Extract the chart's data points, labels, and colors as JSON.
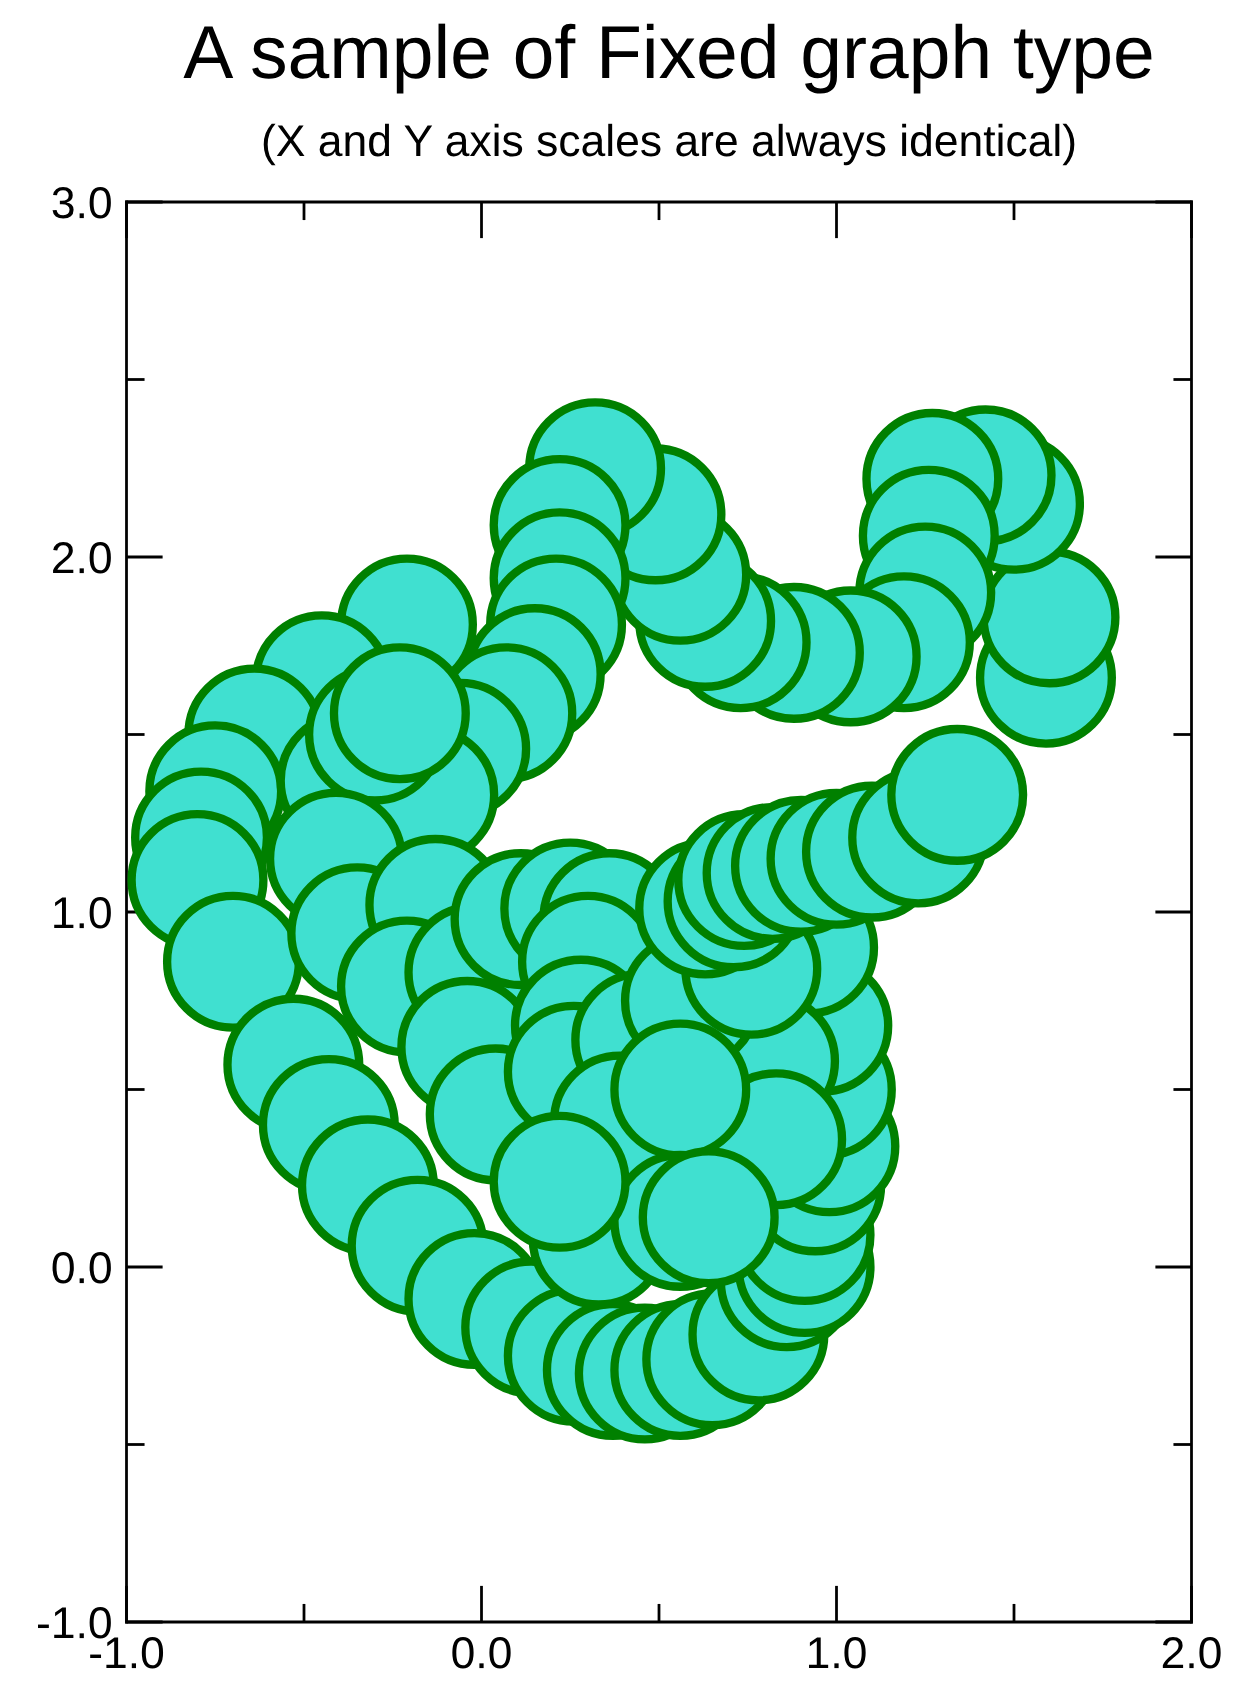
{
  "chart_data": {
    "type": "scatter",
    "title": "A sample of Fixed graph type",
    "subtitle": "(X and Y axis scales are always identical)",
    "x": [
      1.59,
      1.6,
      1.5,
      1.42,
      1.27,
      1.26,
      1.25,
      1.19,
      1.04,
      0.88,
      0.73,
      0.63,
      0.56,
      0.49,
      0.32,
      0.22,
      0.22,
      0.21,
      0.15,
      0.07,
      -0.06,
      -0.21,
      -0.45,
      -0.64,
      -0.75,
      -0.79,
      -0.8,
      -0.38,
      -0.15,
      -0.3,
      -0.23,
      -0.41,
      -0.7,
      -0.53,
      -0.43,
      -0.32,
      -0.18,
      -0.02,
      0.14,
      0.26,
      0.37,
      0.46,
      0.56,
      0.65,
      0.78,
      0.86,
      0.91,
      0.91,
      0.94,
      0.98,
      0.97,
      0.96,
      0.92,
      0.81,
      0.83,
      -0.35,
      -0.13,
      -0.21,
      -0.02,
      -0.04,
      0.04,
      0.11,
      0.25,
      0.36,
      0.3,
      0.28,
      0.26,
      0.45,
      0.59,
      0.39,
      0.56,
      0.33,
      0.56,
      0.64,
      0.22,
      0.76,
      0.63,
      0.71,
      0.74,
      0.82,
      0.9,
      1.0,
      1.1,
      1.23,
      1.34
    ],
    "values": [
      1.66,
      1.83,
      2.15,
      2.23,
      2.22,
      2.06,
      1.9,
      1.76,
      1.72,
      1.73,
      1.76,
      1.82,
      1.95,
      2.12,
      2.25,
      2.09,
      1.94,
      1.81,
      1.67,
      1.56,
      1.46,
      1.81,
      1.65,
      1.5,
      1.34,
      1.21,
      1.09,
      1.37,
      1.33,
      1.5,
      1.56,
      1.15,
      0.86,
      0.57,
      0.4,
      0.23,
      0.06,
      -0.09,
      -0.17,
      -0.25,
      -0.29,
      -0.3,
      -0.29,
      -0.26,
      -0.19,
      -0.04,
      0.0,
      0.09,
      0.23,
      0.34,
      0.5,
      0.68,
      0.9,
      0.58,
      0.36,
      0.94,
      1.02,
      0.79,
      0.83,
      0.62,
      0.43,
      0.98,
      1.01,
      0.98,
      0.86,
      0.68,
      0.55,
      0.64,
      0.75,
      0.41,
      0.5,
      0.08,
      0.13,
      0.14,
      0.24,
      0.84,
      1.01,
      1.03,
      1.09,
      1.11,
      1.13,
      1.15,
      1.17,
      1.21,
      1.33
    ],
    "color": "#40e0d0",
    "marker": "circle",
    "xlim": [
      -1,
      2
    ],
    "ylim": [
      -1,
      3
    ],
    "xticks": [
      {
        "value": -1,
        "label": "-1.0"
      },
      {
        "value": -0.5,
        "label": null
      },
      {
        "value": 0,
        "label": "0.0"
      },
      {
        "value": 0.5,
        "label": null
      },
      {
        "value": 1,
        "label": "1.0"
      },
      {
        "value": 1.5,
        "label": null
      },
      {
        "value": 2,
        "label": "2.0"
      }
    ],
    "yticks": [
      {
        "value": -1,
        "label": "-1.0"
      },
      {
        "value": -0.5,
        "label": null
      },
      {
        "value": 0,
        "label": "0.0"
      },
      {
        "value": 0.5,
        "label": null
      },
      {
        "value": 1,
        "label": "1.0"
      },
      {
        "value": 1.5,
        "label": null
      },
      {
        "value": 2,
        "label": "2.0"
      },
      {
        "value": 2.5,
        "label": null
      },
      {
        "value": 3,
        "label": "3.0"
      }
    ]
  }
}
